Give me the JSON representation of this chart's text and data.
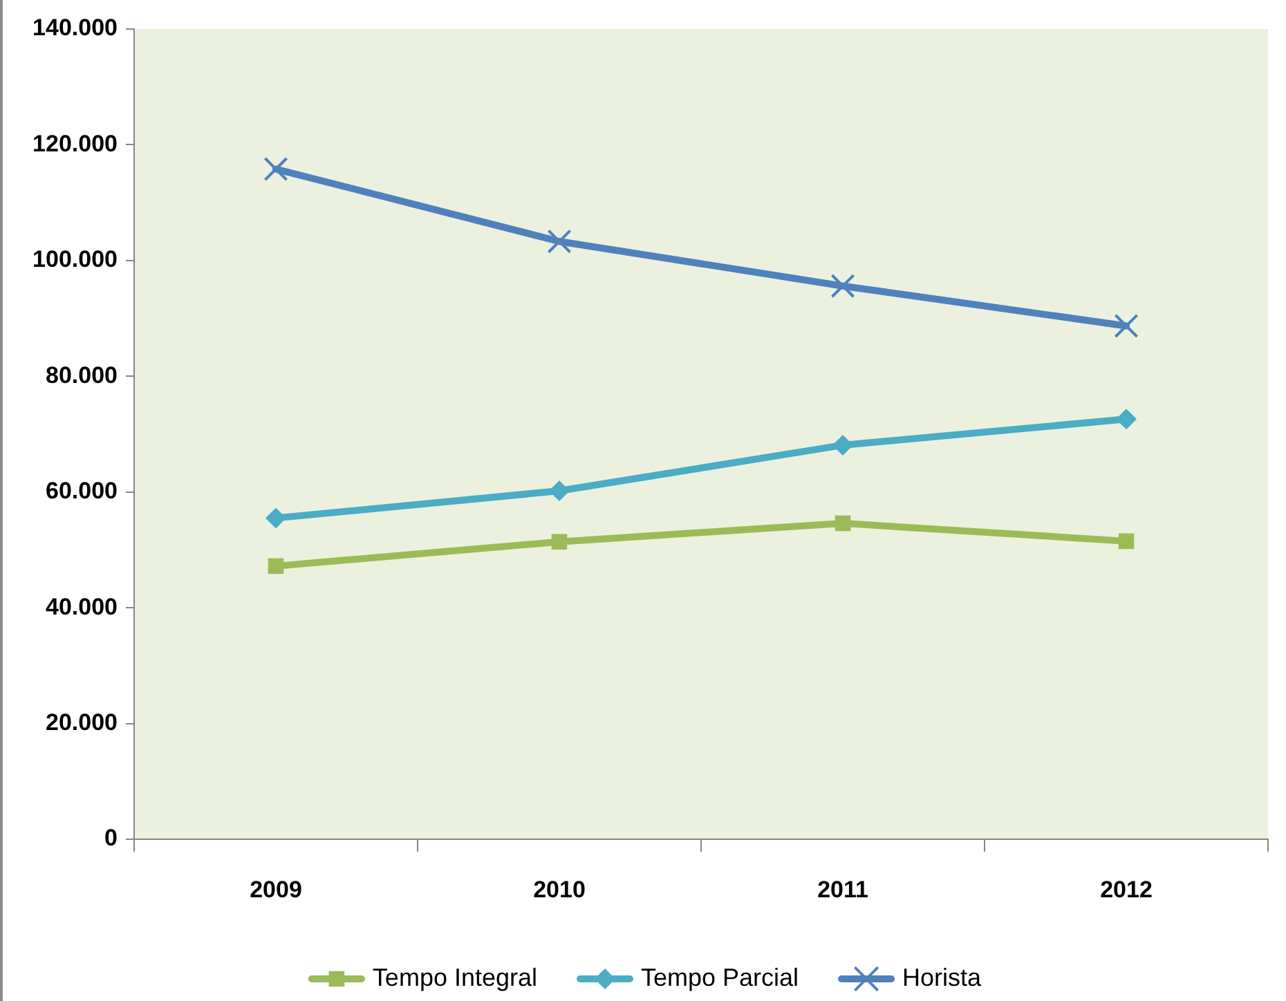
{
  "chart_data": {
    "type": "line",
    "categories": [
      "2009",
      "2010",
      "2011",
      "2012"
    ],
    "series": [
      {
        "name": "Tempo Integral",
        "color": "#9bbb59",
        "marker": "square",
        "values": [
          47200,
          51400,
          54600,
          51500
        ]
      },
      {
        "name": "Tempo Parcial",
        "color": "#4bacc6",
        "marker": "diamond",
        "values": [
          55500,
          60200,
          68100,
          72600
        ]
      },
      {
        "name": "Horista",
        "color": "#4f81bd",
        "marker": "cross",
        "values": [
          115800,
          103300,
          95600,
          88700
        ]
      }
    ],
    "ylim": [
      0,
      140000
    ],
    "yticks": [
      0,
      {
        "value": 20000,
        "label": "20.000"
      },
      {
        "value": 40000,
        "label": "40.000"
      },
      {
        "value": 60000,
        "label": "60.000"
      },
      {
        "value": 80000,
        "label": "80.000"
      },
      {
        "value": 100000,
        "label": "100.000"
      },
      {
        "value": 120000,
        "label": "120.000"
      },
      {
        "value": 140000,
        "label": "140.000"
      }
    ],
    "grid": false,
    "legend": "bottom",
    "line_style": "solid"
  }
}
